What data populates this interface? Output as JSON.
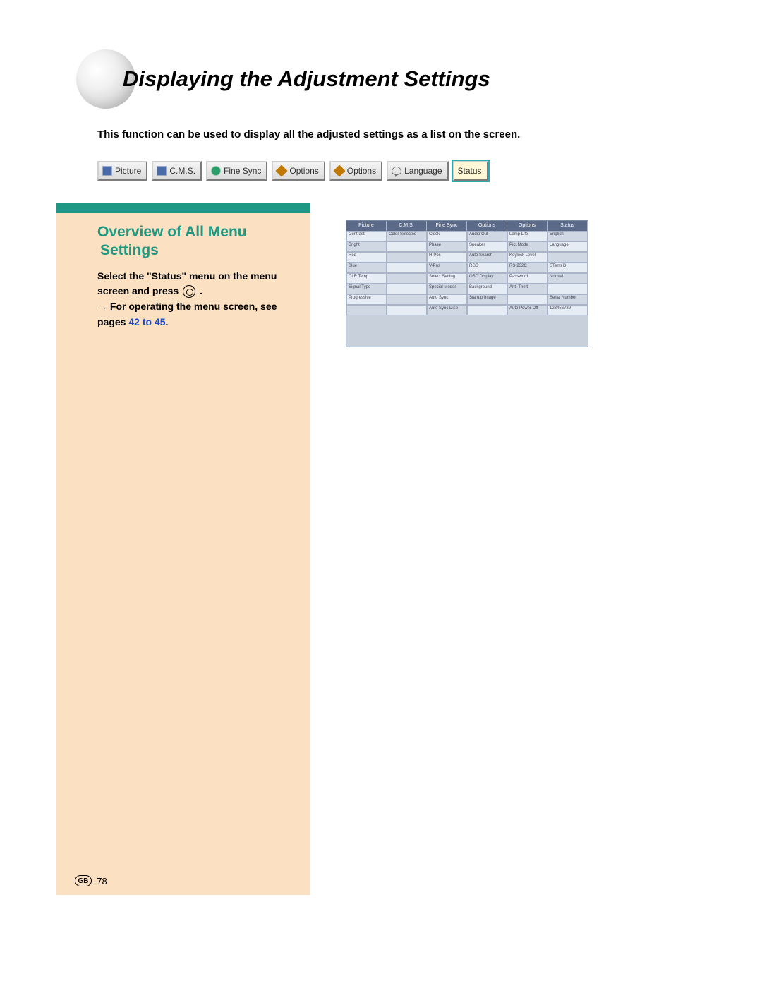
{
  "title": "Displaying the Adjustment Settings",
  "intro": "This function can be used to display all the adjusted settings as a list on the screen.",
  "tabs": [
    {
      "label": "Picture",
      "icon": "ic-blue"
    },
    {
      "label": "C.M.S.",
      "icon": "ic-blue"
    },
    {
      "label": "Fine Sync",
      "icon": "ic-green"
    },
    {
      "label": "Options",
      "icon": "ic-diamond"
    },
    {
      "label": "Options",
      "icon": "ic-diamond"
    },
    {
      "label": "Language",
      "icon": "ic-lang"
    },
    {
      "label": "Status",
      "icon": "",
      "selected": true
    }
  ],
  "section": {
    "title": "Overview of All Menu Settings",
    "line1a": "Select the \"Status\" menu on the menu",
    "line1b": "screen and press ",
    "line1c": " .",
    "line2a": "→ For operating the menu screen, see pages ",
    "line2_link": "42 to 45",
    "line2b": "."
  },
  "status_headers": [
    "Picture",
    "C.M.S.",
    "Fine Sync",
    "Options",
    "Options",
    "Status"
  ],
  "status_rows": [
    [
      "Contrast",
      "Color Selected",
      "Clock",
      "Audio Out",
      "Lamp Life",
      "English"
    ],
    [
      "Bright",
      "",
      "Phase",
      "Speaker",
      "Pict.Mode",
      "Language"
    ],
    [
      "Red",
      "",
      "H-Pos",
      "Auto Search",
      "Keylock Level",
      ""
    ],
    [
      "Blue",
      "",
      "V-Pos",
      "RGB",
      "RS-232C",
      "STerm D"
    ],
    [
      "CLR Temp",
      "",
      "Select Setting",
      "OSD Display",
      "Password",
      "Normal"
    ],
    [
      "Signal Type",
      "",
      "Special Modes",
      "Background",
      "Anti-Theft",
      ""
    ],
    [
      "Progressive",
      "",
      "Auto Sync",
      "Startup Image",
      "",
      "Serial Number"
    ],
    [
      "",
      "",
      "Auto Sync Disp",
      "",
      "Auto Power Off",
      "123456789"
    ]
  ],
  "footer": {
    "region": "GB",
    "page": "-78"
  },
  "colors": {
    "accent_green": "#1e9882",
    "band_bg": "#fbe0c1",
    "link_blue": "#1848c8",
    "tab_highlight": "#2aaab3"
  }
}
